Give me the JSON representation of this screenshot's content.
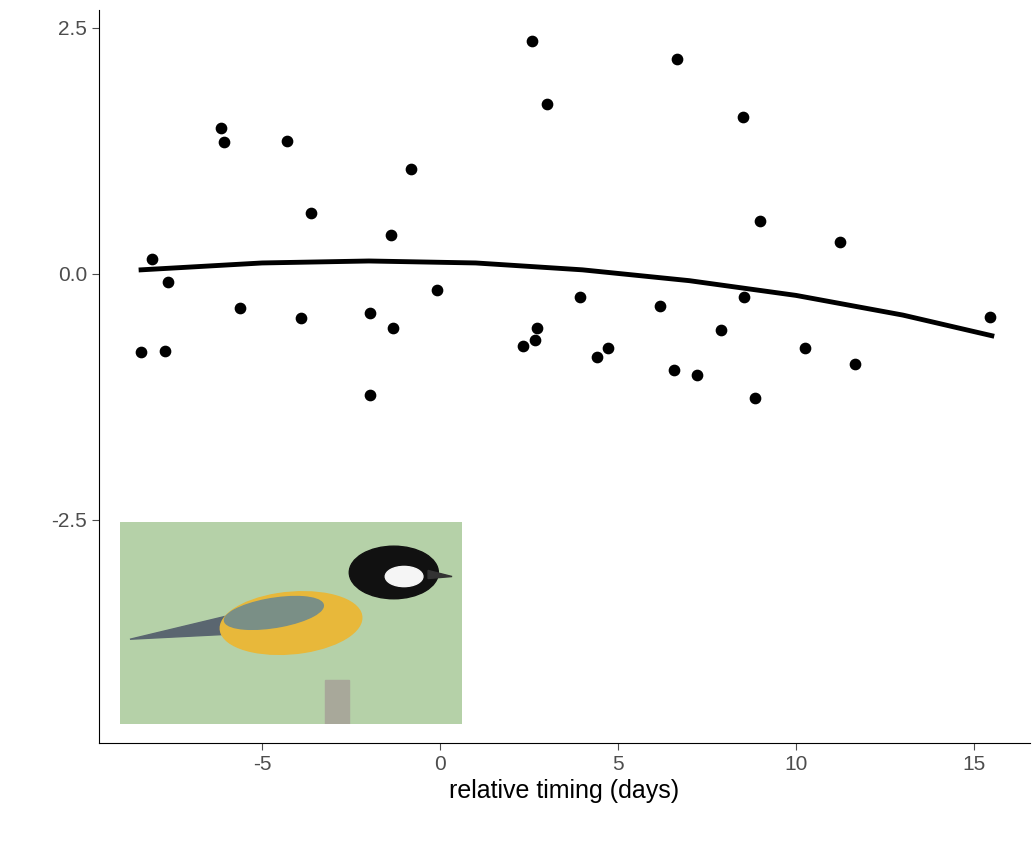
{
  "chart_data": {
    "type": "scatter",
    "x_label": "relative timing (days)",
    "xlim": [
      -9.58,
      16.57
    ],
    "xticks": [
      -5,
      0,
      5,
      10,
      15
    ],
    "ylim": [
      -4.77,
      2.68
    ],
    "yticks": [
      {
        "value": -2.5,
        "label": "-2.5"
      },
      {
        "value": 0.0,
        "label": "0.0"
      },
      {
        "value": 2.5,
        "label": "2.5"
      }
    ],
    "grid": false,
    "series": [
      {
        "type": "scatter",
        "color": "#000000",
        "marker": "o",
        "x": [
          -8.4,
          -8.09,
          -7.72,
          -7.64,
          -6.15,
          -6.07,
          -5.62,
          -4.3,
          -3.9,
          -3.62,
          -1.97,
          -1.97,
          -1.38,
          -1.32,
          -0.81,
          -0.08,
          2.33,
          2.58,
          2.67,
          2.72,
          3.01,
          3.93,
          4.41,
          4.72,
          6.18,
          6.57,
          6.66,
          7.22,
          7.89,
          8.51,
          8.54,
          8.85,
          8.99,
          10.25,
          11.24,
          11.66,
          15.45
        ],
        "values": [
          -0.8,
          0.15,
          -0.79,
          -0.08,
          1.48,
          1.34,
          -0.35,
          1.35,
          -0.45,
          0.62,
          -0.4,
          -1.23,
          0.39,
          -0.55,
          1.07,
          -0.16,
          -0.73,
          2.37,
          -0.67,
          -0.55,
          1.73,
          -0.24,
          -0.85,
          -0.75,
          -0.33,
          -0.98,
          2.18,
          -1.03,
          -0.57,
          1.59,
          -0.24,
          -1.26,
          0.54,
          -0.75,
          0.32,
          -0.92,
          -0.44
        ]
      },
      {
        "type": "line",
        "color": "#000000",
        "line_style": "solid",
        "x": [
          -8.4,
          -5,
          -2,
          1,
          4,
          7,
          10,
          13,
          15.5
        ],
        "values": [
          0.04,
          0.11,
          0.13,
          0.11,
          0.04,
          -0.07,
          -0.22,
          -0.42,
          -0.63
        ]
      }
    ]
  }
}
